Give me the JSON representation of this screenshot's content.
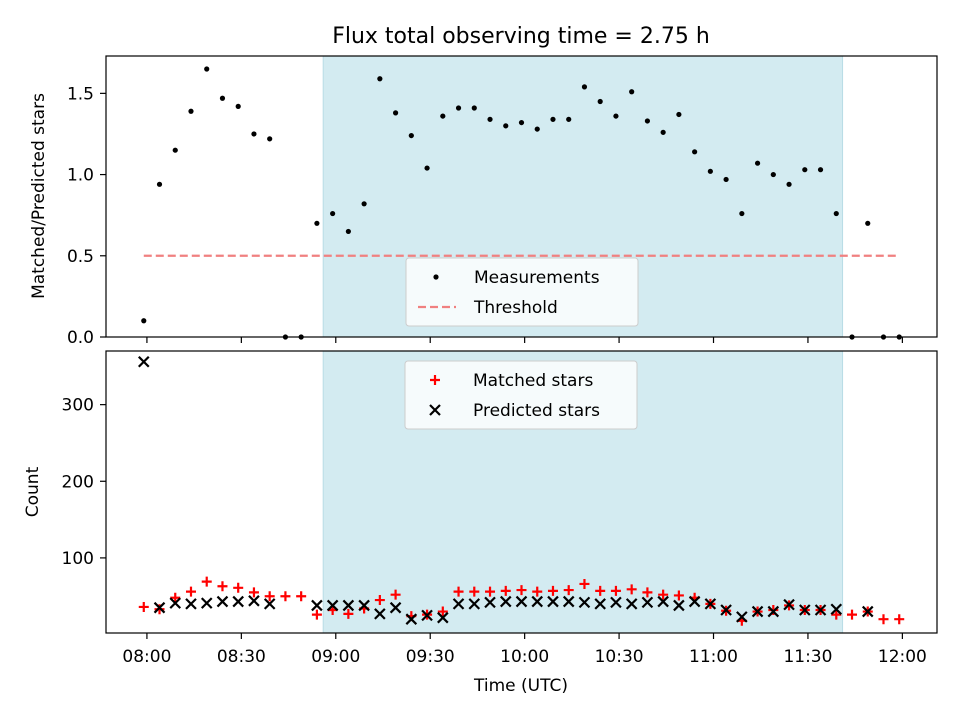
{
  "chart_data": [
    {
      "type": "scatter",
      "title": "Flux total observing time = 2.75 h",
      "xlabel": "",
      "ylabel": "Matched/Predicted stars",
      "ylim": [
        0,
        1.73
      ],
      "yticks": [
        0.0,
        0.5,
        1.0,
        1.5
      ],
      "ytick_labels": [
        "0.0",
        "0.5",
        "1.0",
        "1.5"
      ],
      "shaded_span_minutes": [
        56,
        221
      ],
      "threshold": {
        "value": 0.5,
        "x_range_minutes": [
          -1,
          239
        ],
        "color": "#f08080"
      },
      "legend_position": "lower-center",
      "legend": [
        "Measurements",
        "Threshold"
      ],
      "series": [
        {
          "name": "Measurements",
          "x_minutes": [
            -1,
            4,
            9,
            14,
            19,
            24,
            29,
            34,
            39,
            44,
            49,
            54,
            59,
            64,
            69,
            74,
            79,
            84,
            89,
            94,
            99,
            104,
            109,
            114,
            119,
            124,
            129,
            134,
            139,
            144,
            149,
            154,
            159,
            164,
            169,
            174,
            179,
            184,
            189,
            194,
            199,
            204,
            209,
            214,
            219,
            224,
            229,
            234,
            239
          ],
          "values": [
            0.1,
            0.94,
            1.15,
            1.39,
            1.65,
            1.47,
            1.42,
            1.25,
            1.22,
            0.0,
            0.0,
            0.7,
            0.76,
            0.65,
            0.82,
            1.59,
            1.38,
            1.24,
            1.04,
            1.36,
            1.41,
            1.41,
            1.34,
            1.3,
            1.32,
            1.28,
            1.34,
            1.34,
            1.54,
            1.45,
            1.36,
            1.51,
            1.33,
            1.26,
            1.37,
            1.14,
            1.02,
            0.97,
            0.76,
            1.07,
            1.0,
            0.94,
            1.03,
            1.03,
            0.76,
            0.0,
            0.7,
            0.0,
            0.0
          ]
        }
      ]
    },
    {
      "type": "scatter",
      "title": "",
      "xlabel": "Time (UTC)",
      "ylabel": "Count",
      "ylim": [
        2,
        370
      ],
      "yticks": [
        100,
        200,
        300
      ],
      "ytick_labels": [
        "100",
        "200",
        "300"
      ],
      "xlim_minutes": [
        -13,
        251
      ],
      "xticks_minutes": [
        0,
        30,
        60,
        90,
        120,
        150,
        180,
        210,
        240
      ],
      "xtick_labels": [
        "08:00",
        "08:30",
        "09:00",
        "09:30",
        "10:00",
        "10:30",
        "11:00",
        "11:30",
        "12:00"
      ],
      "shaded_span_minutes": [
        56,
        221
      ],
      "legend_position": "upper-center",
      "legend": [
        "Matched stars",
        "Predicted stars"
      ],
      "series": [
        {
          "name": "Matched stars",
          "color": "#ff0000",
          "x_minutes": [
            -1,
            4,
            9,
            14,
            19,
            24,
            29,
            34,
            39,
            44,
            49,
            54,
            59,
            64,
            69,
            74,
            79,
            84,
            89,
            94,
            99,
            104,
            109,
            114,
            119,
            124,
            129,
            134,
            139,
            144,
            149,
            154,
            159,
            164,
            169,
            174,
            179,
            184,
            189,
            194,
            199,
            204,
            209,
            214,
            219,
            224,
            229,
            234,
            239
          ],
          "values": [
            36,
            33,
            48,
            56,
            69,
            63,
            61,
            55,
            50,
            50,
            50,
            26,
            32,
            27,
            34,
            45,
            52,
            24,
            26,
            30,
            56,
            56,
            56,
            57,
            58,
            56,
            57,
            58,
            66,
            57,
            57,
            59,
            55,
            52,
            51,
            48,
            40,
            31,
            18,
            30,
            32,
            38,
            32,
            32,
            26,
            26,
            30,
            20,
            20
          ]
        },
        {
          "name": "Predicted stars",
          "color": "#000000",
          "x_minutes": [
            -1,
            4,
            9,
            14,
            19,
            24,
            29,
            34,
            39,
            54,
            59,
            64,
            69,
            74,
            79,
            84,
            89,
            94,
            99,
            104,
            109,
            114,
            119,
            124,
            129,
            134,
            139,
            144,
            149,
            154,
            159,
            164,
            169,
            174,
            179,
            184,
            189,
            194,
            199,
            204,
            209,
            214,
            219,
            229
          ],
          "values": [
            356,
            35,
            41,
            40,
            41,
            43,
            43,
            44,
            40,
            38,
            38,
            38,
            38,
            27,
            35,
            20,
            25,
            22,
            40,
            40,
            42,
            43,
            43,
            43,
            43,
            43,
            42,
            40,
            42,
            40,
            42,
            43,
            38,
            43,
            40,
            32,
            23,
            30,
            30,
            39,
            32,
            32,
            33,
            30
          ]
        }
      ]
    }
  ]
}
